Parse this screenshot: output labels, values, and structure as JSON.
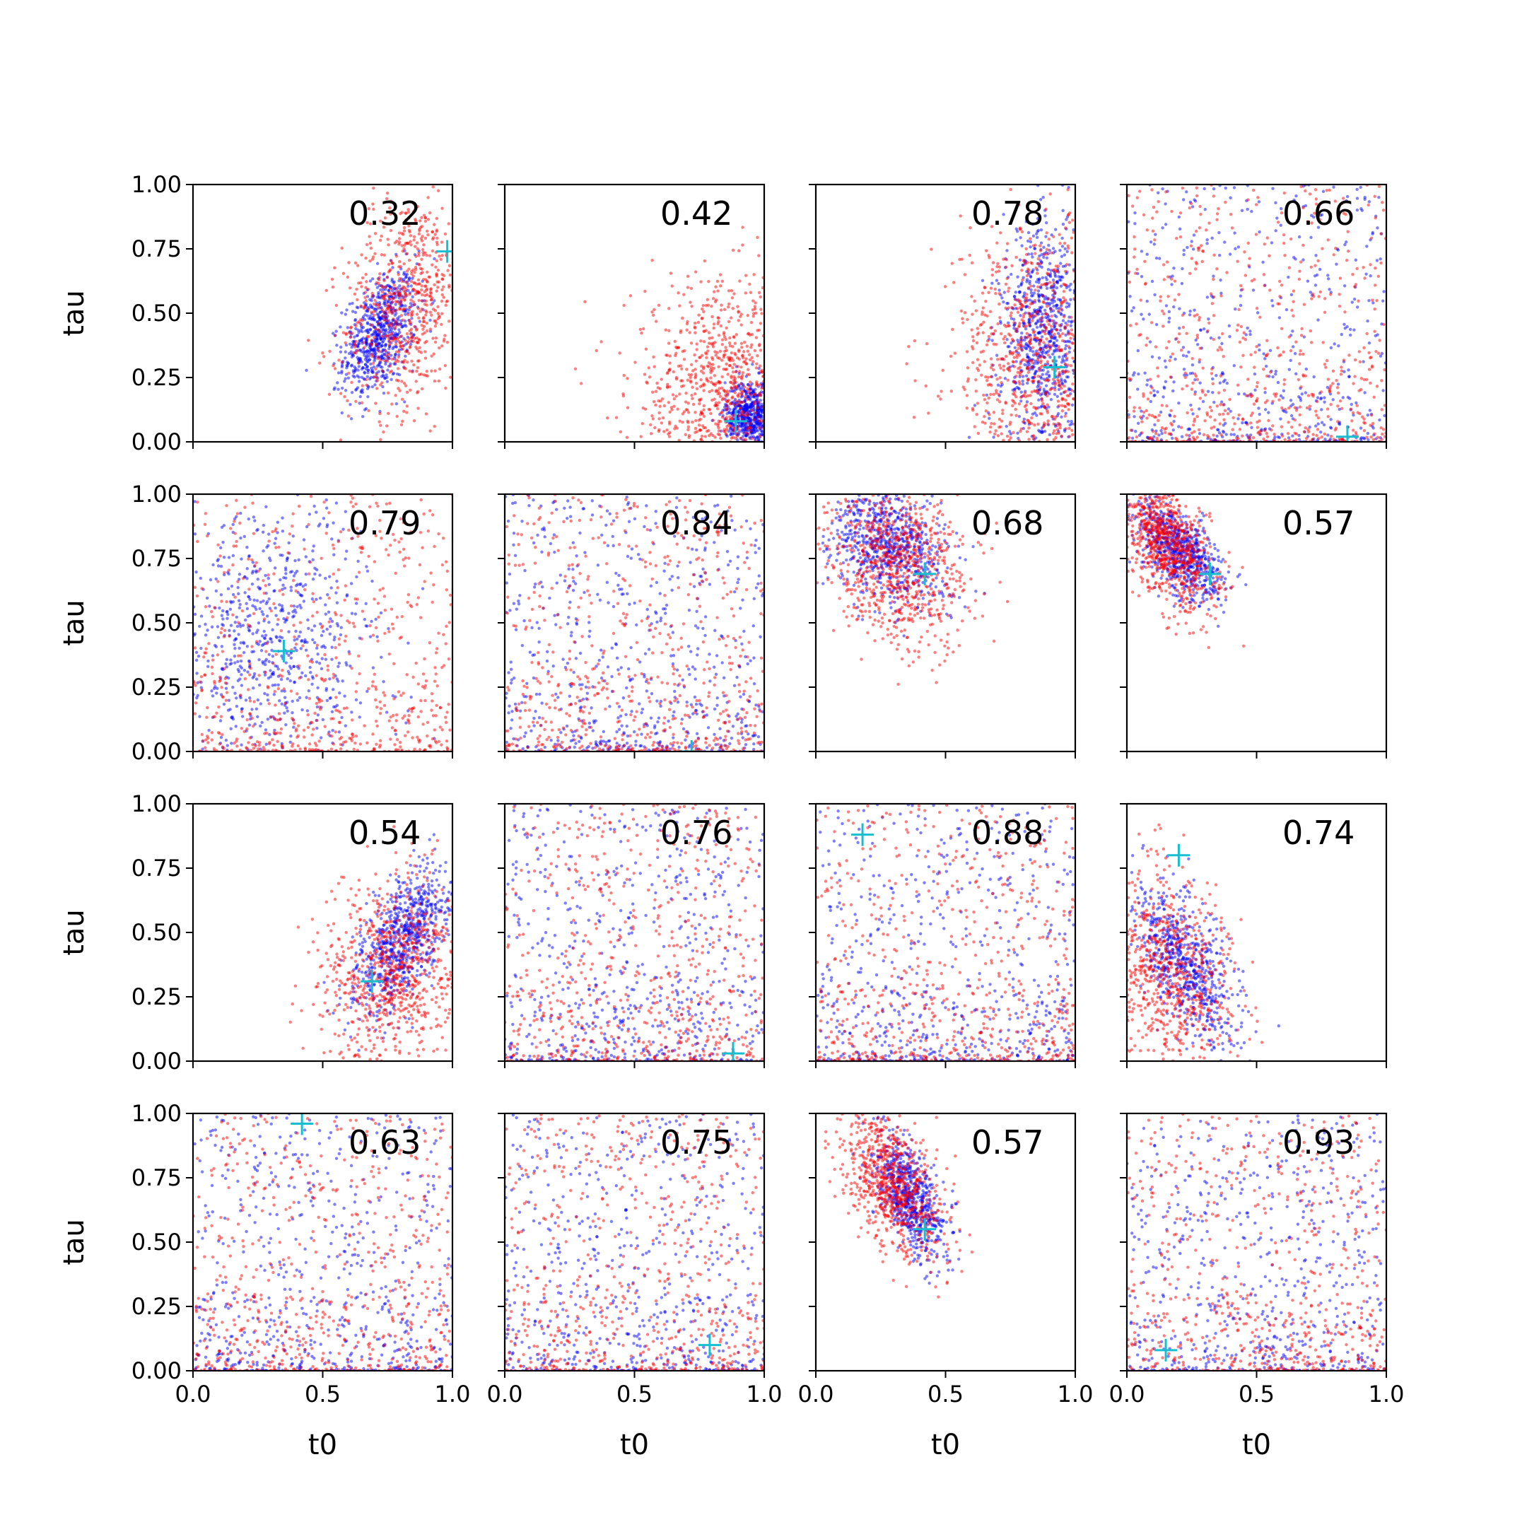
{
  "chart_data": {
    "type": "scatter",
    "layout": {
      "rows": 4,
      "cols": 4,
      "sharex": true,
      "sharey": true
    },
    "xlabel": "t0",
    "ylabel": "tau",
    "xlim": [
      0.0,
      1.0
    ],
    "ylim": [
      0.0,
      1.0
    ],
    "xticks": [
      0.0,
      0.5,
      1.0
    ],
    "xtick_labels": [
      "0.0",
      "0.5",
      "1.0"
    ],
    "yticks": [
      0.0,
      0.25,
      0.5,
      0.75,
      1.0
    ],
    "ytick_labels": [
      "0.00",
      "0.25",
      "0.50",
      "0.75",
      "1.00"
    ],
    "colors": {
      "series_a": "#ff0000",
      "series_b": "#0000ff",
      "marker": "#17becf"
    },
    "grid": false,
    "panels": [
      {
        "annotation": "0.32",
        "marker": {
          "x": 0.98,
          "y": 0.74
        },
        "red": {
          "cx": 0.82,
          "cy": 0.55,
          "sx": 0.12,
          "sy": 0.22,
          "corr": 0.3,
          "n": 650
        },
        "blue": {
          "cx": 0.72,
          "cy": 0.42,
          "sx": 0.07,
          "sy": 0.12,
          "corr": 0.4,
          "n": 700
        }
      },
      {
        "annotation": "0.42",
        "marker": {
          "x": 0.89,
          "y": 0.08
        },
        "red": {
          "cx": 0.85,
          "cy": 0.18,
          "sx": 0.18,
          "sy": 0.22,
          "corr": 0.0,
          "n": 650
        },
        "blue": {
          "cx": 0.95,
          "cy": 0.1,
          "sx": 0.05,
          "sy": 0.07,
          "corr": 0.0,
          "n": 500
        }
      },
      {
        "annotation": "0.78",
        "marker": {
          "x": 0.92,
          "y": 0.29
        },
        "red": {
          "cx": 0.85,
          "cy": 0.3,
          "sx": 0.16,
          "sy": 0.28,
          "corr": 0.0,
          "n": 650
        },
        "blue": {
          "cx": 0.88,
          "cy": 0.42,
          "sx": 0.08,
          "sy": 0.22,
          "corr": 0.1,
          "n": 700
        }
      },
      {
        "annotation": "0.66",
        "marker": {
          "x": 0.85,
          "y": 0.02
        },
        "red": {
          "uniform": true,
          "n": 650
        },
        "blue": {
          "uniform": true,
          "n": 550
        }
      },
      {
        "annotation": "0.79",
        "marker": {
          "x": 0.35,
          "y": 0.39
        },
        "red": {
          "uniform": true,
          "n": 650
        },
        "blue": {
          "cx": 0.32,
          "cy": 0.45,
          "sx": 0.2,
          "sy": 0.28,
          "corr": 0.0,
          "n": 650
        }
      },
      {
        "annotation": "0.84",
        "marker": {
          "x": 0.72,
          "y": 0.0
        },
        "red": {
          "uniform": true,
          "n": 650
        },
        "blue": {
          "uniform": true,
          "n": 600
        }
      },
      {
        "annotation": "0.68",
        "marker": {
          "x": 0.42,
          "y": 0.69
        },
        "red": {
          "cx": 0.3,
          "cy": 0.72,
          "sx": 0.14,
          "sy": 0.16,
          "corr": -0.2,
          "n": 750
        },
        "blue": {
          "cx": 0.28,
          "cy": 0.8,
          "sx": 0.12,
          "sy": 0.12,
          "corr": -0.3,
          "n": 700
        }
      },
      {
        "annotation": "0.57",
        "marker": {
          "x": 0.32,
          "y": 0.69
        },
        "red": {
          "cx": 0.14,
          "cy": 0.82,
          "sx": 0.1,
          "sy": 0.14,
          "corr": -0.5,
          "n": 750
        },
        "blue": {
          "cx": 0.2,
          "cy": 0.78,
          "sx": 0.08,
          "sy": 0.1,
          "corr": -0.6,
          "n": 700
        }
      },
      {
        "annotation": "0.54",
        "marker": {
          "x": 0.69,
          "y": 0.31
        },
        "red": {
          "cx": 0.78,
          "cy": 0.35,
          "sx": 0.14,
          "sy": 0.18,
          "corr": 0.2,
          "n": 750
        },
        "blue": {
          "cx": 0.82,
          "cy": 0.48,
          "sx": 0.1,
          "sy": 0.15,
          "corr": 0.6,
          "n": 750
        }
      },
      {
        "annotation": "0.76",
        "marker": {
          "x": 0.88,
          "y": 0.03
        },
        "red": {
          "uniform": true,
          "n": 650
        },
        "blue": {
          "uniform": true,
          "n": 600
        }
      },
      {
        "annotation": "0.88",
        "marker": {
          "x": 0.18,
          "y": 0.88
        },
        "red": {
          "uniform": true,
          "n": 650
        },
        "blue": {
          "uniform": true,
          "n": 600
        }
      },
      {
        "annotation": "0.74",
        "marker": {
          "x": 0.2,
          "y": 0.8
        },
        "red": {
          "cx": 0.15,
          "cy": 0.35,
          "sx": 0.14,
          "sy": 0.2,
          "corr": -0.3,
          "n": 650
        },
        "blue": {
          "cx": 0.22,
          "cy": 0.38,
          "sx": 0.1,
          "sy": 0.16,
          "corr": -0.6,
          "n": 650
        }
      },
      {
        "annotation": "0.63",
        "marker": {
          "x": 0.42,
          "y": 0.96
        },
        "red": {
          "uniform": true,
          "n": 650
        },
        "blue": {
          "uniform": true,
          "n": 600
        }
      },
      {
        "annotation": "0.75",
        "marker": {
          "x": 0.79,
          "y": 0.1
        },
        "red": {
          "uniform": true,
          "n": 650
        },
        "blue": {
          "uniform": true,
          "n": 600
        }
      },
      {
        "annotation": "0.57",
        "marker": {
          "x": 0.42,
          "y": 0.55
        },
        "red": {
          "cx": 0.3,
          "cy": 0.72,
          "sx": 0.1,
          "sy": 0.14,
          "corr": -0.5,
          "n": 750
        },
        "blue": {
          "cx": 0.36,
          "cy": 0.68,
          "sx": 0.07,
          "sy": 0.12,
          "corr": -0.6,
          "n": 700
        }
      },
      {
        "annotation": "0.93",
        "marker": {
          "x": 0.15,
          "y": 0.08
        },
        "red": {
          "uniform": true,
          "n": 650
        },
        "blue": {
          "uniform": true,
          "n": 600
        }
      }
    ]
  }
}
